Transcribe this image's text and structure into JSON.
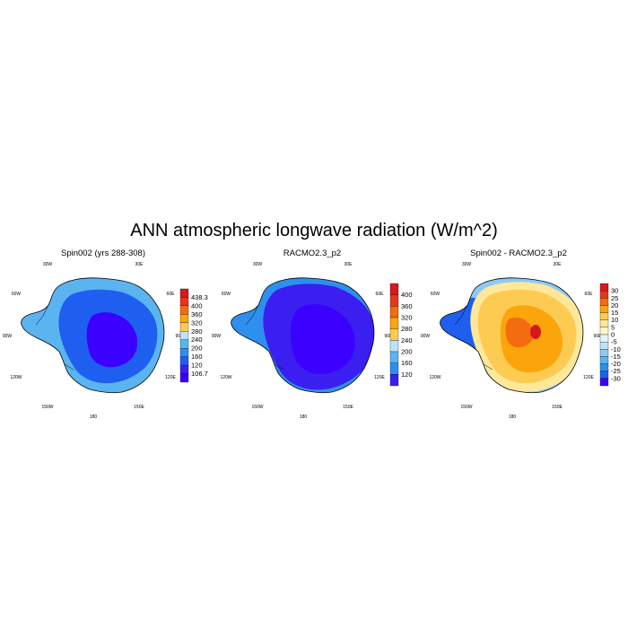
{
  "figure": {
    "title": "ANN atmospheric longwave radiation (W/m^2)"
  },
  "panels": [
    {
      "title": "Spin002 (yrs 288-308)",
      "lon_labels": [
        "30W",
        "30E",
        "60W",
        "60E",
        "90W",
        "90E",
        "120W",
        "120E",
        "150W",
        "150E",
        "180"
      ],
      "colorbar": {
        "labels": [
          "438.3",
          "400",
          "360",
          "320",
          "280",
          "240",
          "200",
          "160",
          "120",
          "106.7"
        ],
        "colors": [
          "#d7191c",
          "#e8351c",
          "#f56b12",
          "#fca50a",
          "#fecb52",
          "#bfe2f8",
          "#5ab4f0",
          "#2d8ff0",
          "#1e5ff0",
          "#3b1ef0",
          "#3b00ff"
        ]
      }
    },
    {
      "title": "RACMO2.3_p2",
      "lon_labels": [
        "30W",
        "30E",
        "60W",
        "60E",
        "90W",
        "90E",
        "120W",
        "120E",
        "150W",
        "150E",
        "180"
      ],
      "colorbar": {
        "labels": [
          "400",
          "360",
          "320",
          "280",
          "240",
          "200",
          "160",
          "120"
        ],
        "colors": [
          "#d7191c",
          "#e8351c",
          "#f56b12",
          "#fca50a",
          "#fecb52",
          "#bfe2f8",
          "#5ab4f0",
          "#2d8ff0",
          "#3b1ef0"
        ]
      }
    },
    {
      "title": "Spin002 - RACMO2.3_p2",
      "lon_labels": [
        "30W",
        "30E",
        "60W",
        "60E",
        "90W",
        "90E",
        "120W",
        "120E",
        "150W",
        "150E",
        "180"
      ],
      "colorbar": {
        "labels": [
          "30",
          "25",
          "20",
          "15",
          "10",
          "5",
          "0",
          "-5",
          "-10",
          "-15",
          "-20",
          "-25",
          "-30"
        ],
        "colors": [
          "#d7191c",
          "#e8351c",
          "#f56b12",
          "#fca50a",
          "#fecb52",
          "#ffe89a",
          "#fff6c8",
          "#e6f4fc",
          "#bfe2f8",
          "#8ccaf4",
          "#5ab4f0",
          "#2d8ff0",
          "#1e5ff0",
          "#3b00ff"
        ]
      }
    }
  ]
}
